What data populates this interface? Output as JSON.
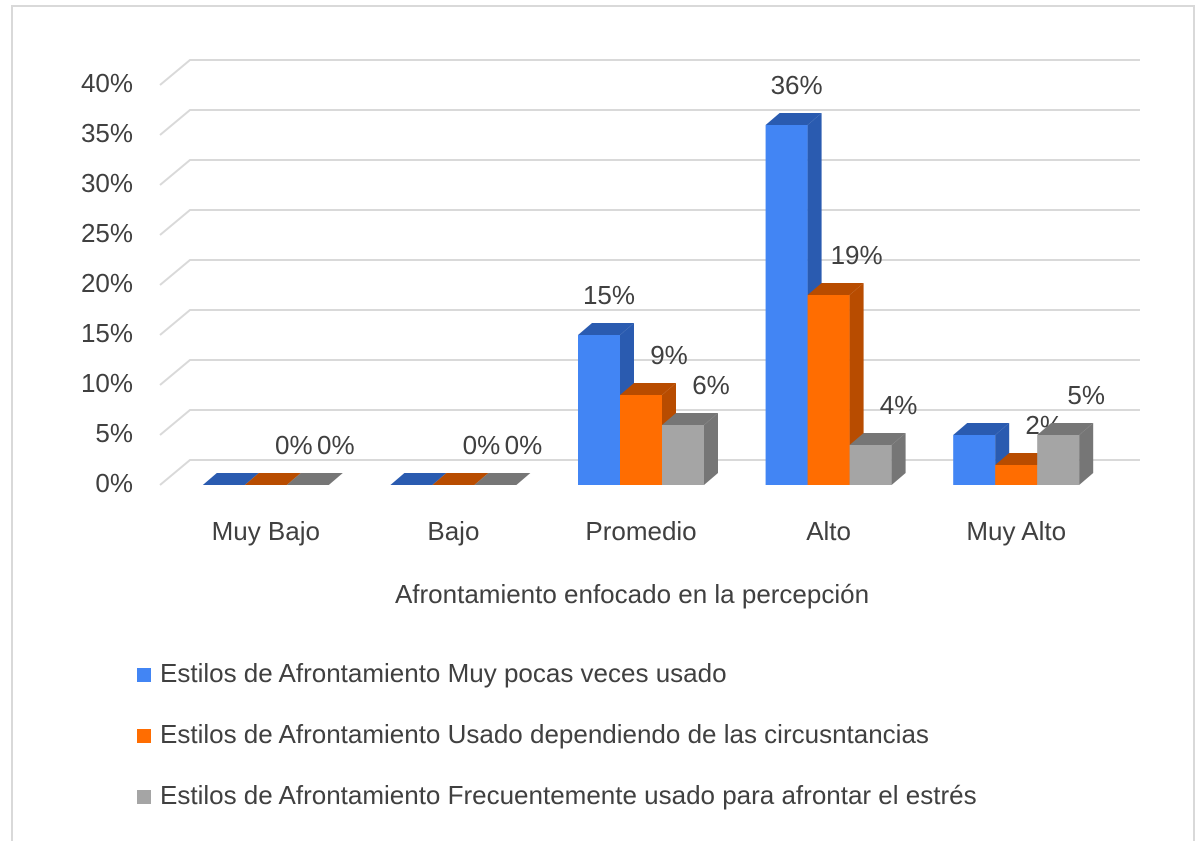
{
  "chart_data": {
    "type": "bar3d",
    "categories": [
      "Muy Bajo",
      "Bajo",
      "Promedio",
      "Alto",
      "Muy Alto"
    ],
    "x_label": "Afrontamiento enfocado en la percepción",
    "series": [
      {
        "name": "Estilos de Afrontamiento Muy pocas veces usado",
        "color": "#4285f4",
        "side": "#2a5bb0",
        "values": [
          0,
          0,
          15,
          36,
          5
        ],
        "value_labels": [
          null,
          null,
          "15%",
          "36%",
          null
        ]
      },
      {
        "name": "Estilos de Afrontamiento Usado dependiendo de las circusntancias",
        "color": "#ff6d01",
        "side": "#b84c00",
        "values": [
          0,
          0,
          9,
          19,
          2
        ],
        "value_labels": [
          "0%",
          "0%",
          "9%",
          "19%",
          "2%"
        ]
      },
      {
        "name": "Estilos de Afrontamiento Frecuentemente usado para afrontar el estrés",
        "color": "#a5a5a5",
        "side": "#767676",
        "values": [
          0,
          0,
          6,
          4,
          5
        ],
        "value_labels": [
          "0%",
          "0%",
          "6%",
          "4%",
          "5%"
        ]
      }
    ],
    "ylim": [
      0,
      40
    ],
    "yticks": [
      {
        "value": 0,
        "label": "0%"
      },
      {
        "value": 5,
        "label": "5%"
      },
      {
        "value": 10,
        "label": "10%"
      },
      {
        "value": 15,
        "label": "15%"
      },
      {
        "value": 20,
        "label": "20%"
      },
      {
        "value": 25,
        "label": "25%"
      },
      {
        "value": 30,
        "label": "30%"
      },
      {
        "value": 35,
        "label": "35%"
      },
      {
        "value": 40,
        "label": "40%"
      }
    ],
    "grid": true,
    "legend": "bottom"
  }
}
